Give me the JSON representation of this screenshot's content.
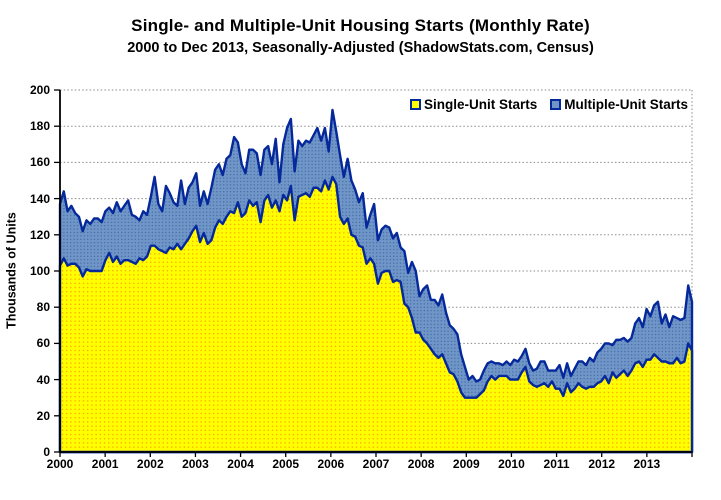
{
  "title": "Single- and Multiple-Unit Housing Starts (Monthly Rate)",
  "subtitle": "2000 to Dec 2013, Seasonally-Adjusted (ShadowStats.com, Census)",
  "y_axis_label": "Thousands of Units",
  "legend": {
    "single_label": "Single-Unit Starts",
    "multiple_label": "Multiple-Unit Starts"
  },
  "colors": {
    "single_fill": "#FFFF00",
    "single_dot": "#FF9900",
    "multiple_fill": "#7096C8",
    "multiple_dot": "#3A62A0",
    "series_border": "#05289B",
    "gridline": "#8A8A8A",
    "axis": "#000000",
    "background": "#FFFFFF"
  },
  "chart_data": {
    "type": "area",
    "stacked": true,
    "title": "Single- and Multiple-Unit Housing Starts (Monthly Rate)",
    "subtitle": "2000 to Dec 2013, Seasonally-Adjusted (ShadowStats.com, Census)",
    "xlabel": "",
    "ylabel": "Thousands of Units",
    "ylim": [
      0,
      200
    ],
    "y_ticks": [
      0,
      20,
      40,
      60,
      80,
      100,
      120,
      140,
      160,
      180,
      200
    ],
    "x_tick_labels": [
      "2000",
      "2001",
      "2002",
      "2003",
      "2004",
      "2005",
      "2006",
      "2007",
      "2008",
      "2009",
      "2010",
      "2011",
      "2012",
      "2013"
    ],
    "x_start": "2000-01",
    "x_end": "2013-12",
    "grid": "horizontal-dotted",
    "legend_position": "top-right-inside",
    "series": [
      {
        "name": "Single-Unit Starts",
        "fill": "#FFFF00",
        "values": [
          103,
          107,
          103,
          104,
          104,
          102,
          97,
          101,
          100,
          100,
          100,
          100,
          106,
          110,
          105,
          108,
          104,
          106,
          106,
          105,
          104,
          107,
          106,
          108,
          114,
          114,
          112,
          111,
          110,
          113,
          112,
          115,
          112,
          115,
          118,
          122,
          125,
          116,
          121,
          115,
          117,
          124,
          128,
          126,
          130,
          133,
          132,
          138,
          130,
          132,
          139,
          136,
          138,
          127,
          139,
          142,
          135,
          139,
          133,
          142,
          139,
          147,
          128,
          141,
          142,
          143,
          141,
          146,
          146,
          144,
          150,
          145,
          152,
          148,
          130,
          126,
          129,
          120,
          119,
          114,
          113,
          104,
          107,
          104,
          93,
          99,
          100,
          100,
          94,
          95,
          94,
          82,
          80,
          74,
          66,
          66,
          62,
          60,
          57,
          54,
          52,
          54,
          49,
          44,
          43,
          39,
          33,
          30,
          30,
          30,
          30,
          32,
          34,
          39,
          42,
          40,
          42,
          42,
          42,
          40,
          40,
          40,
          44,
          47,
          39,
          37,
          36,
          37,
          38,
          36,
          39,
          35,
          35,
          31,
          38,
          33,
          35,
          38,
          36,
          35,
          36,
          36,
          38,
          39,
          42,
          38,
          44,
          41,
          43,
          45,
          42,
          45,
          49,
          50,
          47,
          51,
          51,
          54,
          52,
          50,
          50,
          49,
          49,
          52,
          49,
          50,
          60,
          56
        ]
      },
      {
        "name": "Multiple-Unit Starts",
        "fill": "#7096C8",
        "values": [
          34,
          37,
          30,
          32,
          28,
          28,
          25,
          27,
          26,
          29,
          29,
          27,
          27,
          25,
          27,
          30,
          29,
          30,
          33,
          26,
          26,
          21,
          27,
          23,
          27,
          38,
          25,
          22,
          37,
          30,
          26,
          21,
          38,
          22,
          28,
          27,
          29,
          20,
          23,
          22,
          29,
          32,
          31,
          27,
          32,
          31,
          42,
          33,
          29,
          22,
          28,
          31,
          27,
          26,
          28,
          27,
          24,
          34,
          16,
          28,
          40,
          37,
          27,
          31,
          27,
          29,
          30,
          29,
          33,
          28,
          29,
          21,
          37,
          29,
          34,
          26,
          33,
          30,
          26,
          24,
          30,
          20,
          24,
          33,
          24,
          24,
          25,
          24,
          24,
          26,
          19,
          29,
          19,
          31,
          34,
          20,
          28,
          32,
          27,
          30,
          29,
          33,
          28,
          26,
          25,
          26,
          21,
          17,
          10,
          12,
          9,
          8,
          11,
          10,
          8,
          9,
          7,
          6,
          8,
          8,
          11,
          10,
          9,
          10,
          10,
          8,
          10,
          13,
          12,
          9,
          6,
          10,
          13,
          10,
          11,
          9,
          11,
          12,
          14,
          13,
          16,
          14,
          17,
          18,
          18,
          22,
          15,
          21,
          19,
          18,
          19,
          18,
          22,
          24,
          22,
          28,
          24,
          27,
          31,
          21,
          26,
          20,
          26,
          22,
          24,
          24,
          32,
          27
        ]
      }
    ]
  }
}
